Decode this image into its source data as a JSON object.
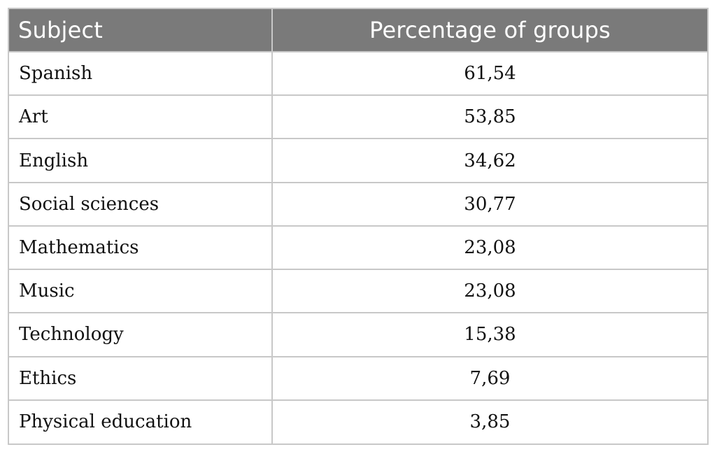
{
  "table": {
    "headers": {
      "subject": "Subject",
      "percentage": "Percentage of groups"
    },
    "rows": [
      {
        "subject": "Spanish",
        "percentage": "61,54"
      },
      {
        "subject": "Art",
        "percentage": "53,85"
      },
      {
        "subject": "English",
        "percentage": "34,62"
      },
      {
        "subject": "Social sciences",
        "percentage": "30,77"
      },
      {
        "subject": "Mathematics",
        "percentage": "23,08"
      },
      {
        "subject": "Music",
        "percentage": "23,08"
      },
      {
        "subject": "Technology",
        "percentage": "15,38"
      },
      {
        "subject": "Ethics",
        "percentage": "7,69"
      },
      {
        "subject": "Physical education",
        "percentage": "3,85"
      }
    ]
  },
  "colors": {
    "header_bg": "#7a7a7a",
    "header_text": "#ffffff",
    "grid": "#c8c8c8",
    "body_text": "#111111"
  }
}
